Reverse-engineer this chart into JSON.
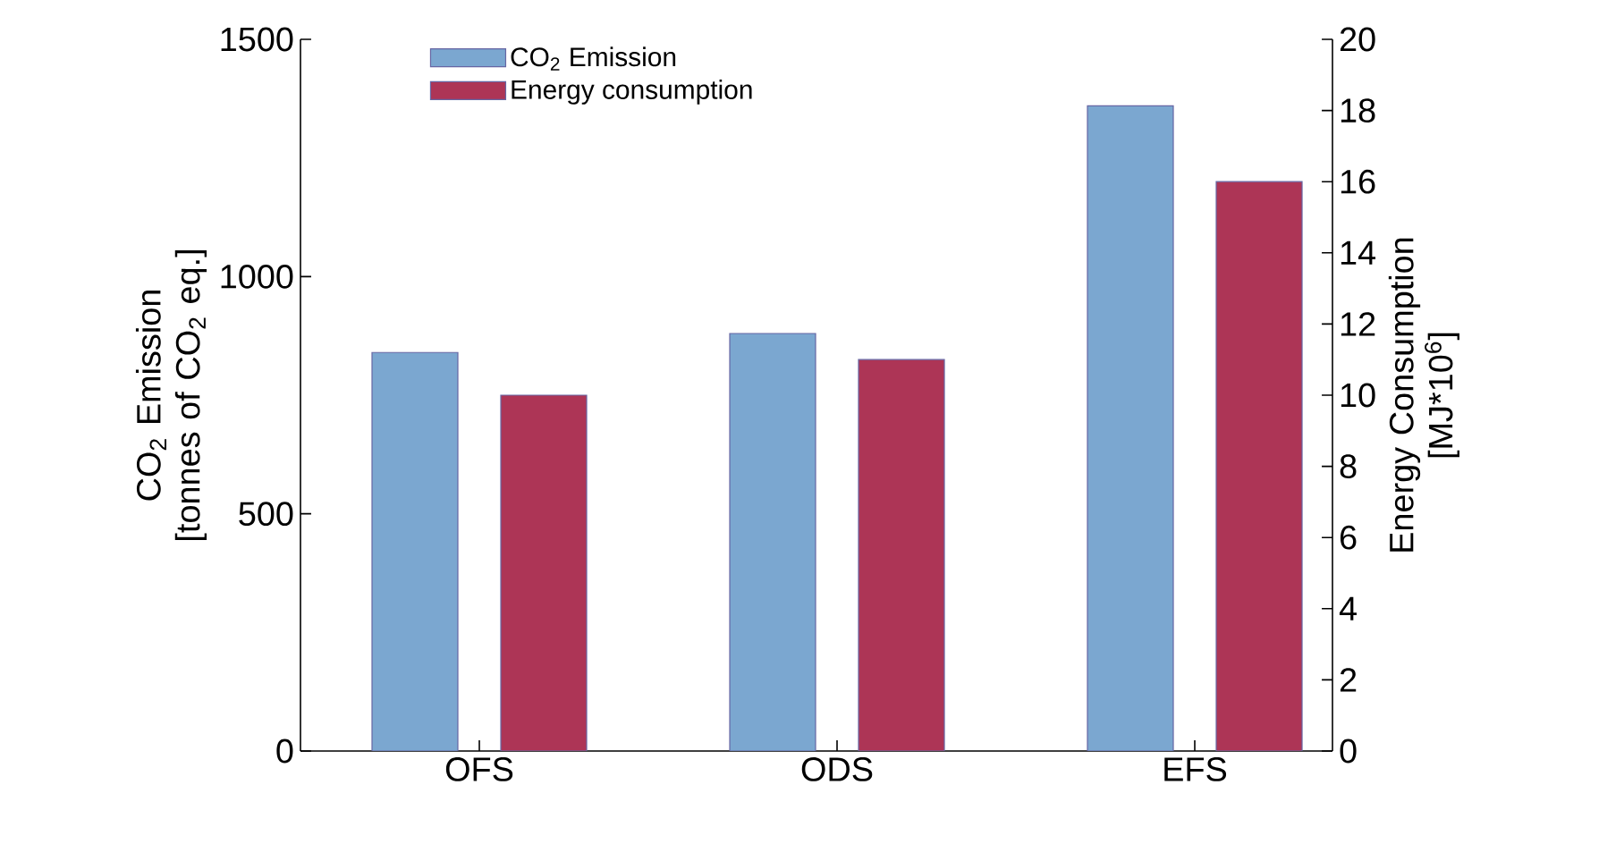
{
  "chart_data": {
    "type": "bar",
    "categories": [
      "OFS",
      "ODS",
      "EFS"
    ],
    "series": [
      {
        "name": "CO$_{2}$ Emission",
        "color": "#7ba7d0",
        "values": [
          840,
          880,
          1360
        ]
      },
      {
        "name": "Energy consumption",
        "color": "#ad3556",
        "values": [
          10,
          11,
          16
        ],
        "axis": "y2"
      }
    ],
    "ylabel": "CO$_{2}$ Emission [tonnes of CO$_{2}$ eq.]",
    "y2label": "Energy Consumption [MJ*10$^{6}$]",
    "ylim": [
      0,
      1500
    ],
    "yticks": [
      0,
      500,
      1000,
      1500
    ],
    "y2lim": [
      0,
      20
    ],
    "y2ticks": [
      0,
      2,
      4,
      6,
      8,
      10,
      12,
      14,
      16,
      18,
      20
    ],
    "legend": "top left",
    "grid": false
  }
}
